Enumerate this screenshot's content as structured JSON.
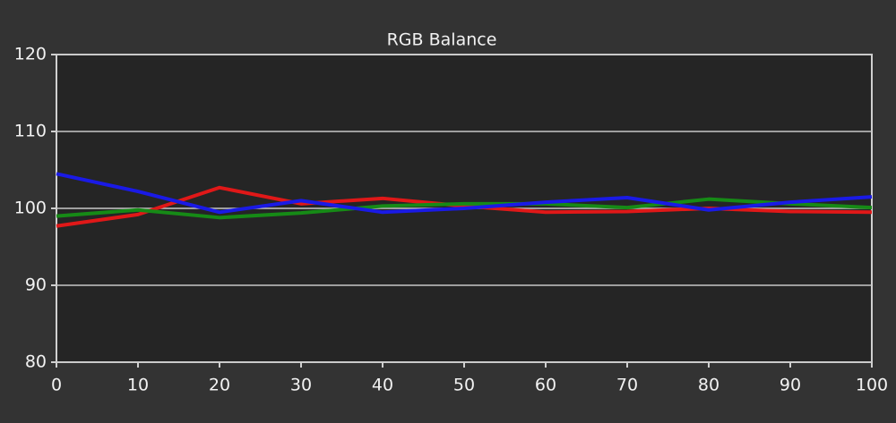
{
  "chart_data": {
    "type": "line",
    "title": "RGB Balance",
    "x": [
      0,
      10,
      20,
      30,
      40,
      50,
      60,
      70,
      80,
      90,
      100
    ],
    "series": [
      {
        "color": "#e01818",
        "values": [
          97.7,
          99.2,
          102.7,
          100.6,
          101.3,
          100.3,
          99.5,
          99.6,
          100.0,
          99.6,
          99.5
        ]
      },
      {
        "color": "#168a16",
        "values": [
          99.0,
          99.8,
          98.8,
          99.4,
          100.3,
          100.6,
          100.6,
          100.1,
          101.2,
          100.6,
          100.1
        ]
      },
      {
        "color": "#1a1ae6",
        "values": [
          104.5,
          102.2,
          99.5,
          101.0,
          99.5,
          100.0,
          100.8,
          101.4,
          99.8,
          100.8,
          101.5
        ]
      }
    ],
    "xlim": [
      0,
      100
    ],
    "xticks": [
      0,
      10,
      20,
      30,
      40,
      50,
      60,
      70,
      80,
      90,
      100
    ],
    "ylim": [
      80,
      120
    ],
    "yticks": [
      80,
      90,
      100,
      110,
      120
    ],
    "grid": true
  }
}
